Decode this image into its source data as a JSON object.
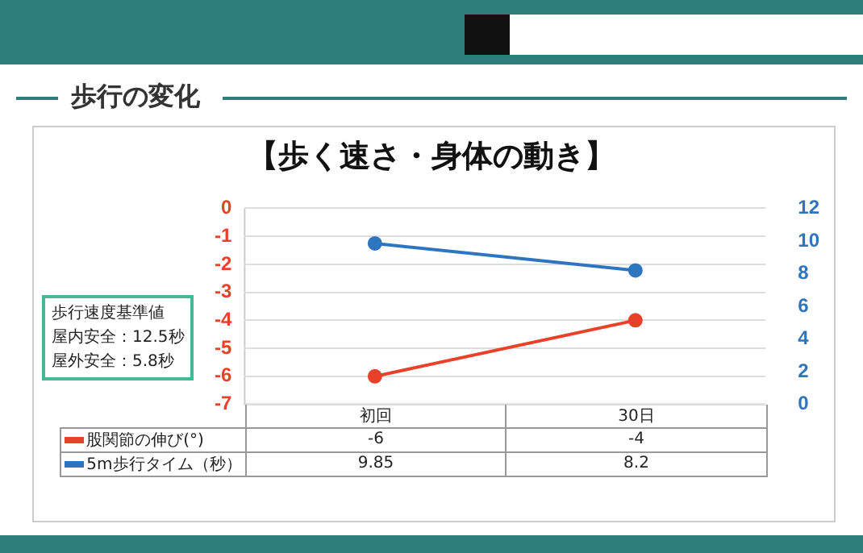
{
  "chart_data": {
    "type": "line",
    "title": "【歩く速さ・身体の動き】",
    "subtitle": "歩行の変化",
    "categories": [
      "初回",
      "30日"
    ],
    "series": [
      {
        "name": "股関節の伸び(°)",
        "color": "#e8412a",
        "values": [
          -6,
          -4
        ]
      },
      {
        "name": "5m歩行タイム（秒）",
        "color": "#2e75c0",
        "values": [
          9.85,
          8.2
        ],
        "axis": "y2"
      }
    ],
    "ylim": [
      -7,
      0
    ],
    "yticks": [
      -7,
      -6,
      -5,
      -4,
      -3,
      -2,
      -1,
      0
    ],
    "y2lim": [
      0,
      12
    ],
    "y2ticks": [
      0,
      2,
      4,
      6,
      8,
      10,
      12
    ],
    "grid": "y",
    "legend": "bottom",
    "marker": "circle",
    "line_style": "solid",
    "data_labels": true,
    "annotations": [
      "歩行速度基準値",
      "屋内安全：12.5秒",
      "屋外安全：5.8秒"
    ]
  }
}
